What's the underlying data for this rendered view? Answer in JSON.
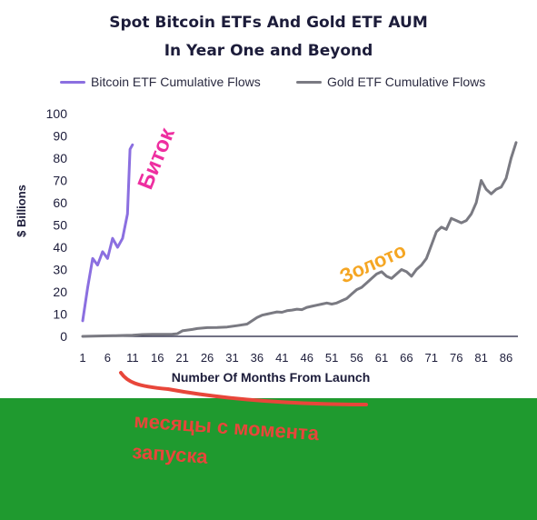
{
  "chart_data": {
    "type": "line",
    "title": "Spot Bitcoin ETFs And Gold ETF AUM",
    "subtitle": "In Year One and Beyond",
    "xlabel": "Number Of Months From Launch",
    "ylabel": "$ Billions",
    "xlim": [
      1,
      88
    ],
    "ylim": [
      0,
      100
    ],
    "x_ticks": [
      1,
      6,
      11,
      16,
      21,
      26,
      31,
      36,
      41,
      46,
      51,
      56,
      61,
      66,
      71,
      76,
      81,
      86
    ],
    "y_ticks": [
      0,
      10,
      20,
      30,
      40,
      50,
      60,
      70,
      80,
      90,
      100
    ],
    "grid": false,
    "legend": "top",
    "series": [
      {
        "name": "Bitcoin ETF Cumulative Flows",
        "color": "#8b6fe0",
        "x": [
          1,
          2,
          3,
          4,
          5,
          6,
          7,
          8,
          9,
          10,
          10.5,
          11
        ],
        "y": [
          7,
          22,
          35,
          32,
          38,
          35,
          44,
          40,
          44,
          55,
          84,
          86
        ]
      },
      {
        "name": "Gold ETF Cumulative Flows",
        "color": "#7a7a82",
        "x": [
          1,
          3,
          5,
          7,
          9,
          11,
          13,
          15,
          17,
          19,
          20,
          21,
          22,
          23,
          24,
          26,
          28,
          30,
          32,
          34,
          35,
          36,
          37,
          38,
          39,
          40,
          41,
          42,
          43,
          44,
          45,
          46,
          47,
          48,
          49,
          50,
          51,
          52,
          53,
          54,
          55,
          56,
          57,
          58,
          59,
          60,
          61,
          62,
          63,
          64,
          65,
          66,
          67,
          68,
          69,
          70,
          71,
          72,
          73,
          74,
          75,
          76,
          77,
          78,
          79,
          80,
          81,
          82,
          83,
          84,
          85,
          86,
          87,
          88
        ],
        "y": [
          0,
          0.1,
          0.2,
          0.3,
          0.4,
          0.5,
          0.8,
          0.9,
          0.9,
          1.0,
          1.2,
          2.5,
          2.8,
          3.1,
          3.5,
          3.9,
          4.0,
          4.2,
          4.8,
          5.5,
          7,
          8.5,
          9.5,
          10,
          10.5,
          11,
          10.8,
          11.5,
          11.8,
          12.2,
          12.0,
          13,
          13.5,
          14,
          14.5,
          15,
          14.5,
          15,
          16,
          17,
          19,
          21,
          22,
          24,
          26,
          28,
          29,
          27,
          26,
          28,
          30,
          29,
          27,
          30,
          32,
          35,
          41,
          47,
          49,
          48,
          53,
          52,
          51,
          52,
          55,
          60,
          70,
          66,
          64,
          66,
          67,
          71,
          80,
          87
        ]
      }
    ],
    "annotations": [
      {
        "text": "Биток",
        "color": "#ee2ea0"
      },
      {
        "text": "Золото",
        "color": "#f5a623"
      },
      {
        "text": "месяцы с момента запуска",
        "color": "#e8463a"
      }
    ]
  }
}
